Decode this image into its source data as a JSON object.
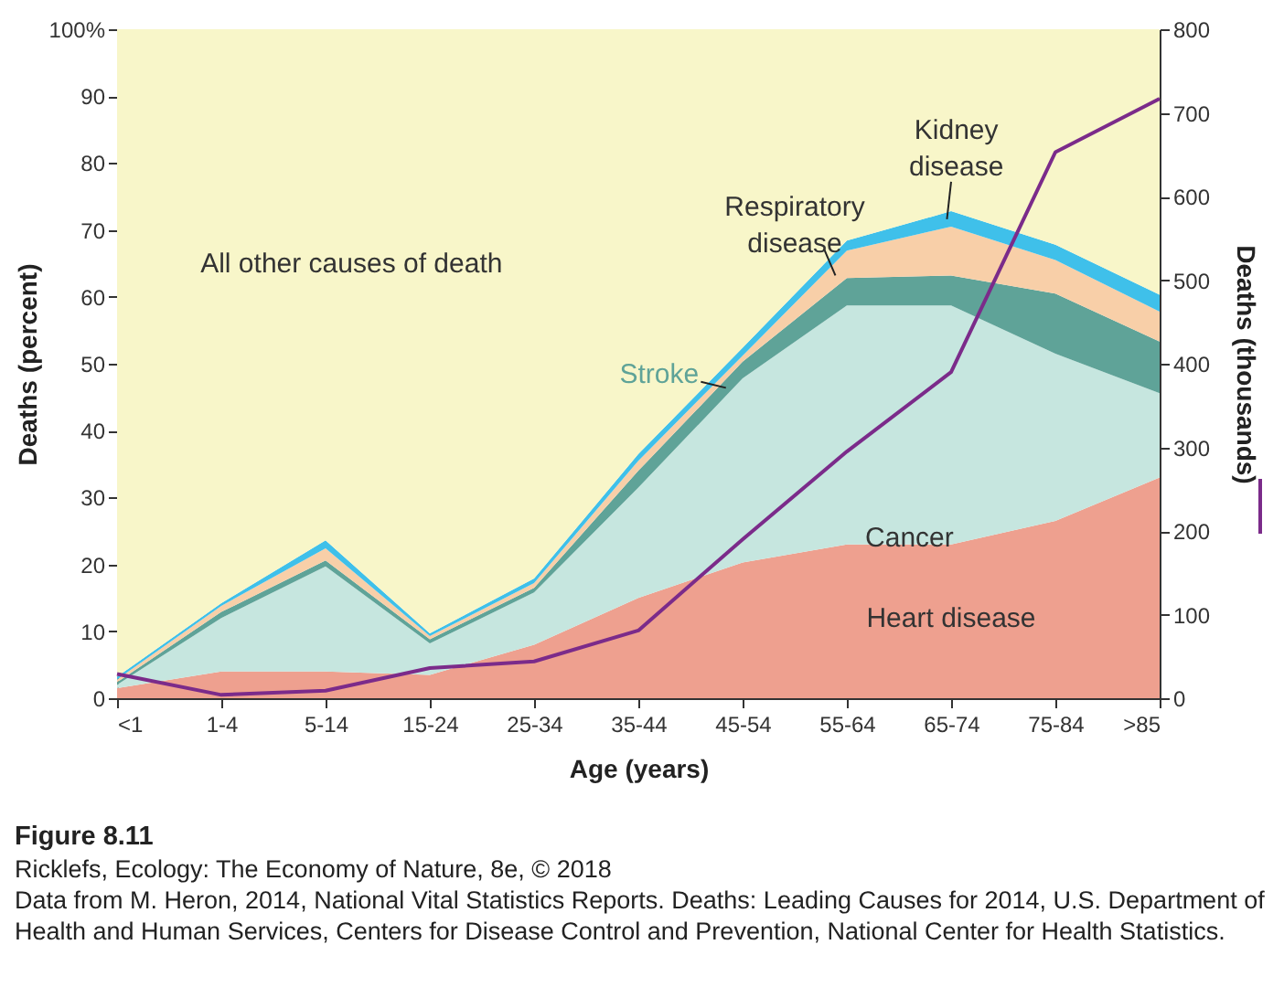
{
  "chart_data": {
    "type": "area",
    "stacked": true,
    "xlabel": "Age (years)",
    "ylabel": "Deaths (percent)",
    "y2label": "Deaths (thousands)",
    "categories": [
      "<1",
      "1-4",
      "5-14",
      "15-24",
      "25-34",
      "35-44",
      "45-54",
      "55-64",
      "65-74",
      "75-84",
      ">85"
    ],
    "ylim": [
      0,
      100
    ],
    "yticks": [
      0,
      10,
      20,
      30,
      40,
      50,
      60,
      70,
      80,
      90,
      {
        "value": 100,
        "label": "100%"
      }
    ],
    "y2lim": [
      0,
      800
    ],
    "y2ticks": [
      0,
      100,
      200,
      300,
      400,
      500,
      600,
      700,
      800
    ],
    "series": [
      {
        "name": "Heart disease",
        "color": "#eea08f",
        "values": [
          1.5,
          4,
          4,
          3.5,
          8,
          15,
          20.3,
          23,
          23,
          26.5,
          33
        ]
      },
      {
        "name": "Cancer",
        "color": "#c6e6df",
        "values": [
          0.5,
          8,
          15.7,
          4.7,
          7.8,
          16.5,
          27.5,
          35.7,
          35.7,
          25,
          12.6
        ]
      },
      {
        "name": "Stroke",
        "color": "#5fa398",
        "values": [
          0.4,
          0.9,
          0.9,
          0.6,
          0.7,
          2.5,
          2.5,
          4.1,
          4.5,
          9,
          7.7
        ]
      },
      {
        "name": "Respiratory disease",
        "color": "#f8cfa8",
        "values": [
          0.4,
          0.9,
          1.8,
          0.5,
          0.7,
          1.5,
          0.9,
          4.1,
          7.3,
          5,
          4.5
        ]
      },
      {
        "name": "Kidney disease",
        "color": "#3fc0ea",
        "values": [
          0.4,
          0.4,
          1.2,
          0.4,
          0.7,
          1,
          1.2,
          1.5,
          2.3,
          2.3,
          2.5
        ]
      },
      {
        "name": "All other causes of death",
        "color": "#f8f6c9",
        "values": [
          96.8,
          85.8,
          76.4,
          90.3,
          82.1,
          63.5,
          47.6,
          31.6,
          27.2,
          32.2,
          39.7
        ]
      },
      {
        "type": "line",
        "axis": "y2",
        "color": "#7b2b8a",
        "values": [
          29,
          4,
          9,
          36,
          44,
          81,
          190,
          295,
          390,
          653,
          717
        ]
      }
    ],
    "annotations": [
      "Figure 8.11",
      "Ricklefs, Ecology: The Economy of Nature, 8e, © 2018",
      "Data from M. Heron, 2014, National Vital Statistics Reports. Deaths: Leading Causes for 2014, U.S. Department of Health and Human Services, Centers for Disease Control and Prevention, National Center for Health Statistics."
    ]
  }
}
